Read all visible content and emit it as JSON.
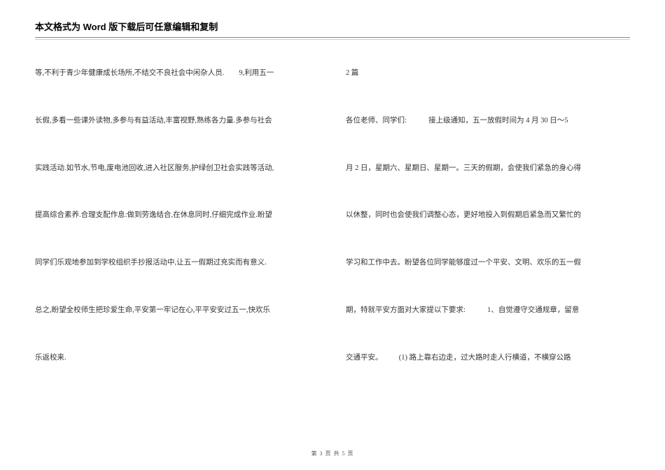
{
  "header": {
    "title": "本文格式为 Word 版下载后可任意编辑和复制"
  },
  "left_column": {
    "lines": [
      "等,不利于青少年健康成长场所,不结交不良社会中闲杂人员.　　9,利用五一",
      "长假,多看一些课外读物,多参与有益活动,丰富视野,熟练各力量.多参与社会",
      "实践活动.如节水,节电,废电池回收,进入社区服务,护绿创卫社会实践等活动,",
      "提高综合素养.合理支配作息:做到劳逸结合,在休息同时,仔细完成作业.盼望",
      "同学们乐观地参加到学校组织手抄报活动中,让五一假期过充实而有意义.",
      "总之,盼望全校师生把珍爱生命,平安第一牢记在心,平平安安过五一,快欢乐",
      "乐返校来."
    ]
  },
  "right_column": {
    "line1_a": "2 篇",
    "line2_a": "各位老师、同学们:",
    "line2_b": "接上级通知，五一放假时间为 4 月 30 日～5",
    "line3": "月 2 日，星期六、星期日、星期一。三天的假期，会使我们紧急的身心得",
    "line4": "以休整，同时也会使我们调整心态，更好地投入到假期后紧急而又繁忙的",
    "line5": "学习和工作中去。盼望各位同学能够度过一个平安、文明、欢乐的五一假",
    "line6_a": "期，特就平安方面对大家提以下要求:",
    "line6_b": "1、自觉遵守交通规章，留意",
    "line7_a": "交通平安。",
    "line7_b": "(1) 路上靠右边走，过大路时走人行横道，不横穿公路"
  },
  "footer": {
    "text": "第 3 页 共 5 页"
  },
  "colors": {
    "text": "#333333",
    "rule_dark": "#888888",
    "rule_light": "#cccccc",
    "bg": "#ffffff"
  },
  "typography": {
    "header_fontsize": 13,
    "body_fontsize": 10.5,
    "footer_fontsize": 8
  }
}
